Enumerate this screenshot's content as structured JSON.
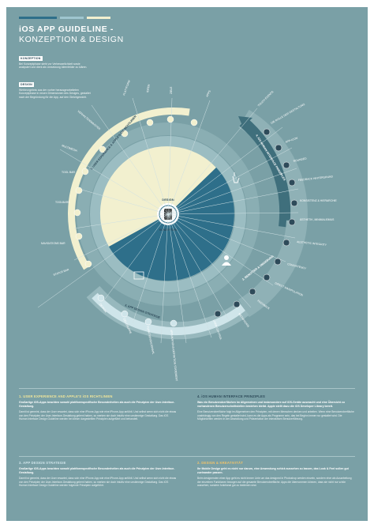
{
  "header": {
    "title": "iOS APP GUIDELINE -",
    "subtitle": "KONZEPTION & DESIGN",
    "stripe_colors": [
      "#2e6f8a",
      "#9fc6cf",
      "#f2f0cf"
    ]
  },
  "legend": {
    "konzeption_tag": "KONZEPTION",
    "konzeption_text": "Bei Konzeptphase steht vor Verbesserlichkeit sowie analysiert und dient als Umsetzung Ideenfelder zu klären.",
    "design_tag": "DESIGN",
    "design_text": "Werbeorgebnis aus der vorher herausgearbeiteten Konzeptphase in neuen Dimensionen des Designs, gestaltet nach der Begründung für die App, auf den Gleichgewicht."
  },
  "center": {
    "design_label": "DESIGN",
    "konzeption_label": "KONZEPTION",
    "phone_icon": "smartphone-icon"
  },
  "rings": {
    "ux": "1. USER EXPERIENCE & APPLE'S iOS SICHTLINIEN",
    "hig": "4. iOS HUMAN INTERFACE PRINZIPLES",
    "strategy": "3. APP DESIGN STRATEGIE",
    "design": "2. DESIGN & KREATIVITÄT",
    "konzept_top": "3. APP DESIGN STRATEGIE",
    "benutzer": "2. BENUTZER & UMGEBUNG"
  },
  "spokes": {
    "left": [
      "VERHALTENSMUSTER",
      "MULTIMEDIA",
      "TOOL BAR",
      "TOOLBARS",
      "NAVIGATIONS BAR",
      "STATUS BAR"
    ],
    "top": [
      "PLATTFORM",
      "IDEEN",
      "ZIELE",
      "APPS"
    ],
    "right": [
      "TOUCH EVENTS",
      "DIE ROLLE DER GESTALTUNG",
      "APP-ICON",
      "ROUNDED",
      "FEEDBACK HINTERGRUND",
      "KONSISTENZ & HIERARCHIE",
      "ÄSTHETIK, MINIMALISMUS",
      "AESTHETIC INTEGRITY",
      "CONSISTENCY",
      "DIRECT MANIPULATION",
      "FEEDBACK",
      "METAPHORS"
    ],
    "bottom": [
      "USER CONTROL",
      "APPLIKATIONS-DEFINITION STATEMENT",
      "FUNKTIONSAUSWAHL",
      "ZIELGRUPPE",
      "DESIGN"
    ]
  },
  "sections": [
    {
      "heading": "1. USER EXPERIENCE AND APPLE'S iOS RICHTLINIEN",
      "lead": "Großartige iOS-Apps beachten sowohl plattformspezifische Besonderheiten als auch die Prinzipien der User-Interface-Gestaltung.",
      "body": "Damit ist gemeint, dass der User erwartet, dass sich eine iPhone-App wie eine iPhone-App anfühlt. Und selbst wenn sich nicht die etwas von den Prinzipien der User-Interface-Gestaltung gelernt haben, so merken sie doch intuitiv eine unstimmige Gestaltung. Das iOS Human Interface Design Guideline werden bei dieser dargestellten Prinzipien aufgeführt und behandelt."
    },
    {
      "heading": "4. iOS HUMAN INTERFACE PRINZIPLES",
      "lead": "Was ein Benutzeroberflächen im Allgemeinen und insbesondere auf iOS-Geräte ausmacht und eine Übersicht zu vorhandenen Benutzerschnittstellen bestehen bleibt. Apple stellt dazu die iOS Developer Library bereit.",
      "body": "Eine Benutzeroberfläche folgt im Allgemeinen den Prinzipien, mit denen Menschen denken und arbeiten. Wenn eine Benutzeroberfläche unabhängig von den Regeln gestaltet wird, kann es die Apps als Programm sein, das bei Beginn immer nur gestaltet wird. Die Möglichkeiten werden in der Abwicklung und Präsentation der interaktiven Benutzerführung."
    },
    {
      "heading": "3. APP DESIGN STRATEGIE",
      "lead": "Großartige iOS-Apps beachten sowohl plattformspezifische Besonderheiten als auch die Prinzipien der User-Interface-Gestaltung.",
      "body": "Damit ist gemeint, dass der User erwartet, dass sich eine iPhone-App wie eine iPhone-App anfühlt. Und selbst wenn sich nicht die etwas von den Prinzipien der User-Interface-Gestaltung gelernt haben, so merken sie doch intuitiv eine unstimmige Gestaltung. Das iOS Human Interface Design Guideline werden folgende Prinzipien aufgeführt."
    },
    {
      "heading": "2. DESIGN & KREATIVITÄT",
      "lead": "Ihr Mobile Design geht es nicht nur darum, eine Anwendung schick aussehen zu lassen, das Look & Feel sollen gut zueinander passen.",
      "body": "Beim designenden einer App geht es nicht immer Linie um das designed in Photoshop werden einzeln, sondern eher als Ausarbeitung der einzelnen Funktionen bezogen auf die gesamte Benutzeroberfläche. Apps die übernommen können, dass sie nicht nur schön aussehen, sondern funktional gut zu bedienen sind."
    }
  ],
  "colors": {
    "background": "#7aa0a6",
    "dark_teal": "#2e6f8a",
    "cream": "#f2f0cf",
    "light_ring": "#a9c4c8",
    "mid_ring": "#8fb1b6",
    "dark_ring": "#4f7f8c",
    "yellow_heading": "#f2e79a",
    "orange_heading": "#f0c36a"
  }
}
